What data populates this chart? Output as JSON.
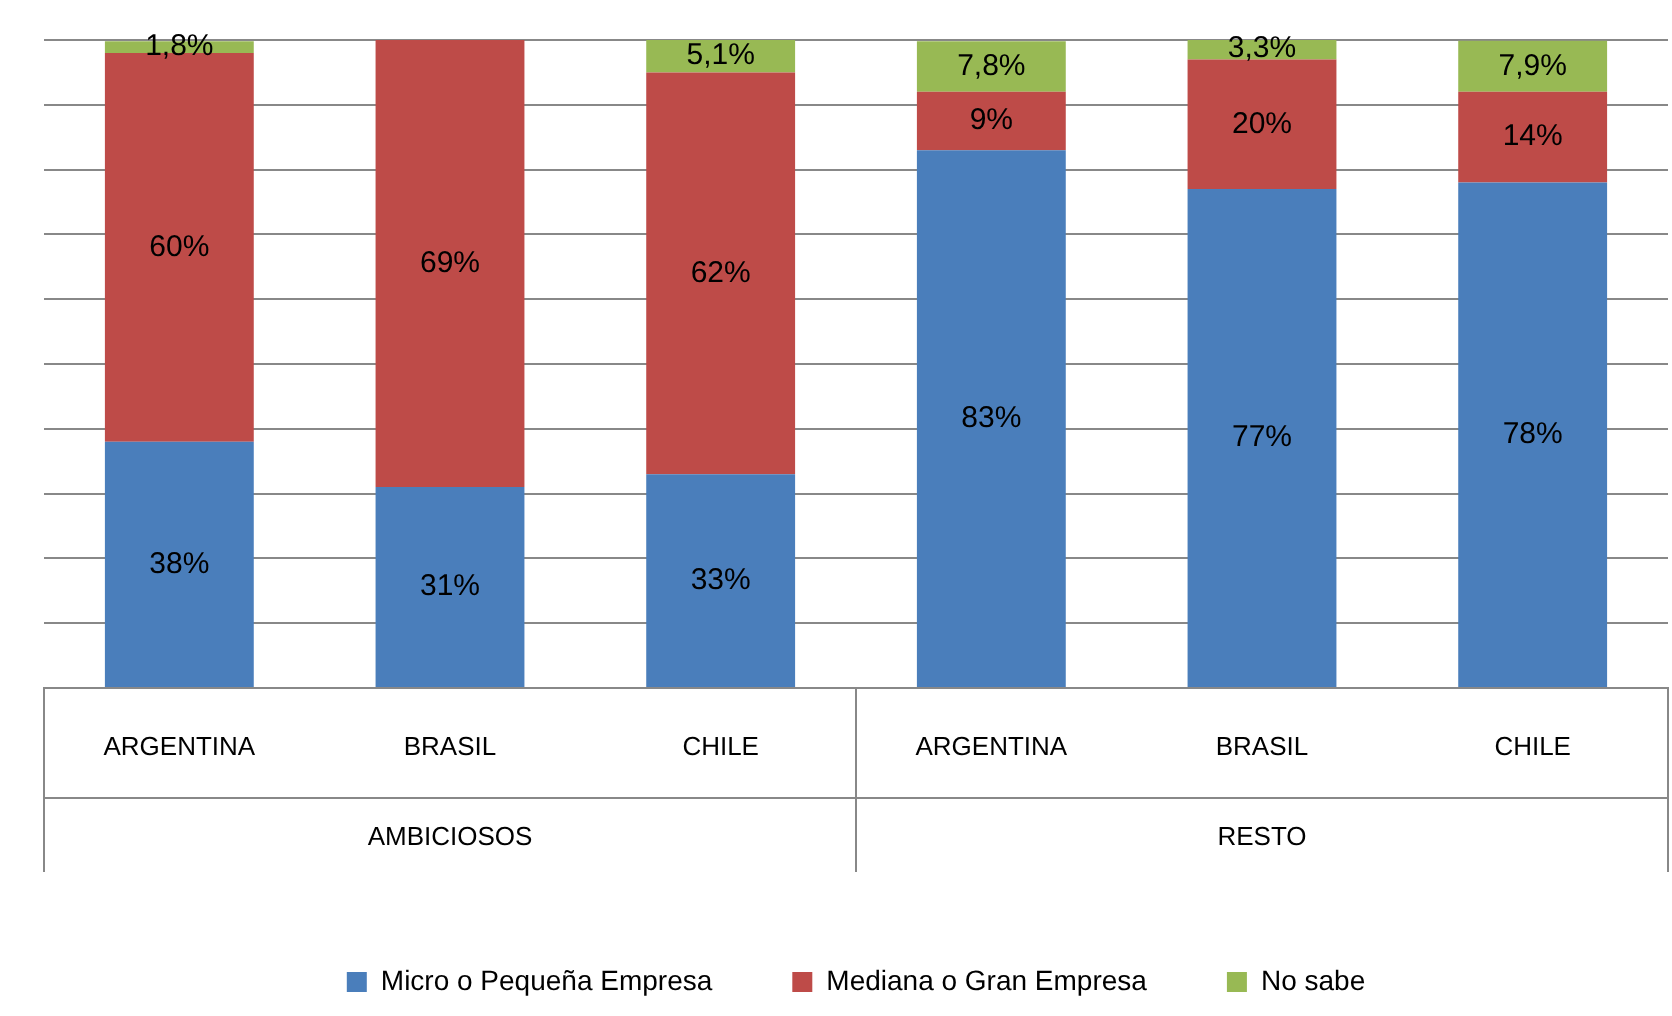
{
  "chart_data": {
    "type": "bar",
    "stacked": true,
    "categories": [
      "ARGENTINA",
      "BRASIL",
      "CHILE",
      "ARGENTINA",
      "BRASIL",
      "CHILE"
    ],
    "series": [
      {
        "name": "Micro o Pequeña Empresa",
        "color": "#4a7ebb",
        "values": [
          38,
          31,
          33,
          83,
          77,
          78
        ],
        "value_labels": [
          "38%",
          "31%",
          "33%",
          "83%",
          "77%",
          "78%"
        ]
      },
      {
        "name": "Mediana o Gran Empresa",
        "color": "#be4b48",
        "values": [
          60,
          69,
          62,
          9,
          20,
          14
        ],
        "value_labels": [
          "60%",
          "69%",
          "62%",
          "9%",
          "20%",
          "14%"
        ]
      },
      {
        "name": "No sabe",
        "color": "#98b954",
        "values": [
          1.8,
          null,
          5.1,
          7.8,
          3.3,
          7.9
        ],
        "value_labels": [
          "1,8%",
          null,
          "5,1%",
          "7,8%",
          "3,3%",
          "7,9%"
        ]
      }
    ],
    "annotations": [
      "AMBICIOSOS",
      "RESTO"
    ],
    "ylim": [
      0,
      100
    ],
    "yticks": [
      {
        "value": 0,
        "label": null
      },
      {
        "value": 10,
        "label": null
      },
      {
        "value": 20,
        "label": null
      },
      {
        "value": 30,
        "label": null
      },
      {
        "value": 40,
        "label": null
      },
      {
        "value": 50,
        "label": null
      },
      {
        "value": 60,
        "label": null
      },
      {
        "value": 70,
        "label": null
      },
      {
        "value": 80,
        "label": null
      },
      {
        "value": 90,
        "label": null
      },
      {
        "value": 100,
        "label": null
      }
    ],
    "tick_labels": "x",
    "grid": "y",
    "legend": "bottom"
  }
}
